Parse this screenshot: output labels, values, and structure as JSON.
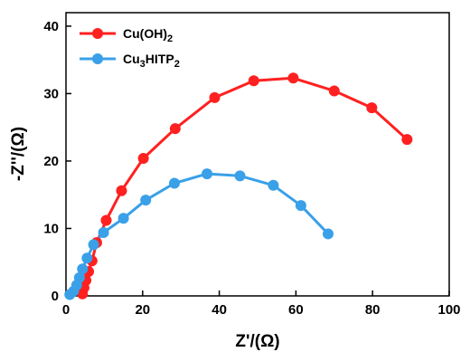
{
  "chart_data": {
    "type": "scatter",
    "xlabel": "Z'/(Ω)",
    "ylabel": "-Z''/(Ω)",
    "xlim": [
      0,
      100
    ],
    "ylim": [
      0,
      42
    ],
    "xticks": [
      "0",
      "20",
      "40",
      "60",
      "80",
      "100"
    ],
    "yticks": [
      "0",
      "10",
      "20",
      "30",
      "40"
    ],
    "grid": false,
    "legend_position": "top-left",
    "series": [
      {
        "name": "Cu(OH)",
        "name_sub": "2",
        "color": "#ff2020",
        "marker": "circle",
        "x": [
          4.3,
          4.7,
          5.2,
          5.9,
          6.8,
          8.0,
          10.5,
          14.5,
          20.2,
          28.5,
          38.8,
          49.0,
          59.3,
          70.0,
          79.8,
          89.0
        ],
        "y": [
          0.3,
          1.2,
          2.3,
          3.6,
          5.2,
          7.9,
          11.2,
          15.6,
          20.4,
          24.8,
          29.4,
          31.9,
          32.3,
          30.4,
          27.9,
          23.2
        ]
      },
      {
        "name": "Cu",
        "name_sub1": "3",
        "name_mid": "HITP",
        "name_sub2": "2",
        "color": "#3aa0e8",
        "marker": "circle",
        "x": [
          1.0,
          2.0,
          2.8,
          3.5,
          4.3,
          5.5,
          7.2,
          9.8,
          15.0,
          20.8,
          28.3,
          36.8,
          45.4,
          54.1,
          61.3,
          68.4
        ],
        "y": [
          0.2,
          0.7,
          1.6,
          2.7,
          4.0,
          5.6,
          7.6,
          9.4,
          11.5,
          14.2,
          16.7,
          18.1,
          17.8,
          16.4,
          13.4,
          9.2
        ]
      }
    ]
  }
}
